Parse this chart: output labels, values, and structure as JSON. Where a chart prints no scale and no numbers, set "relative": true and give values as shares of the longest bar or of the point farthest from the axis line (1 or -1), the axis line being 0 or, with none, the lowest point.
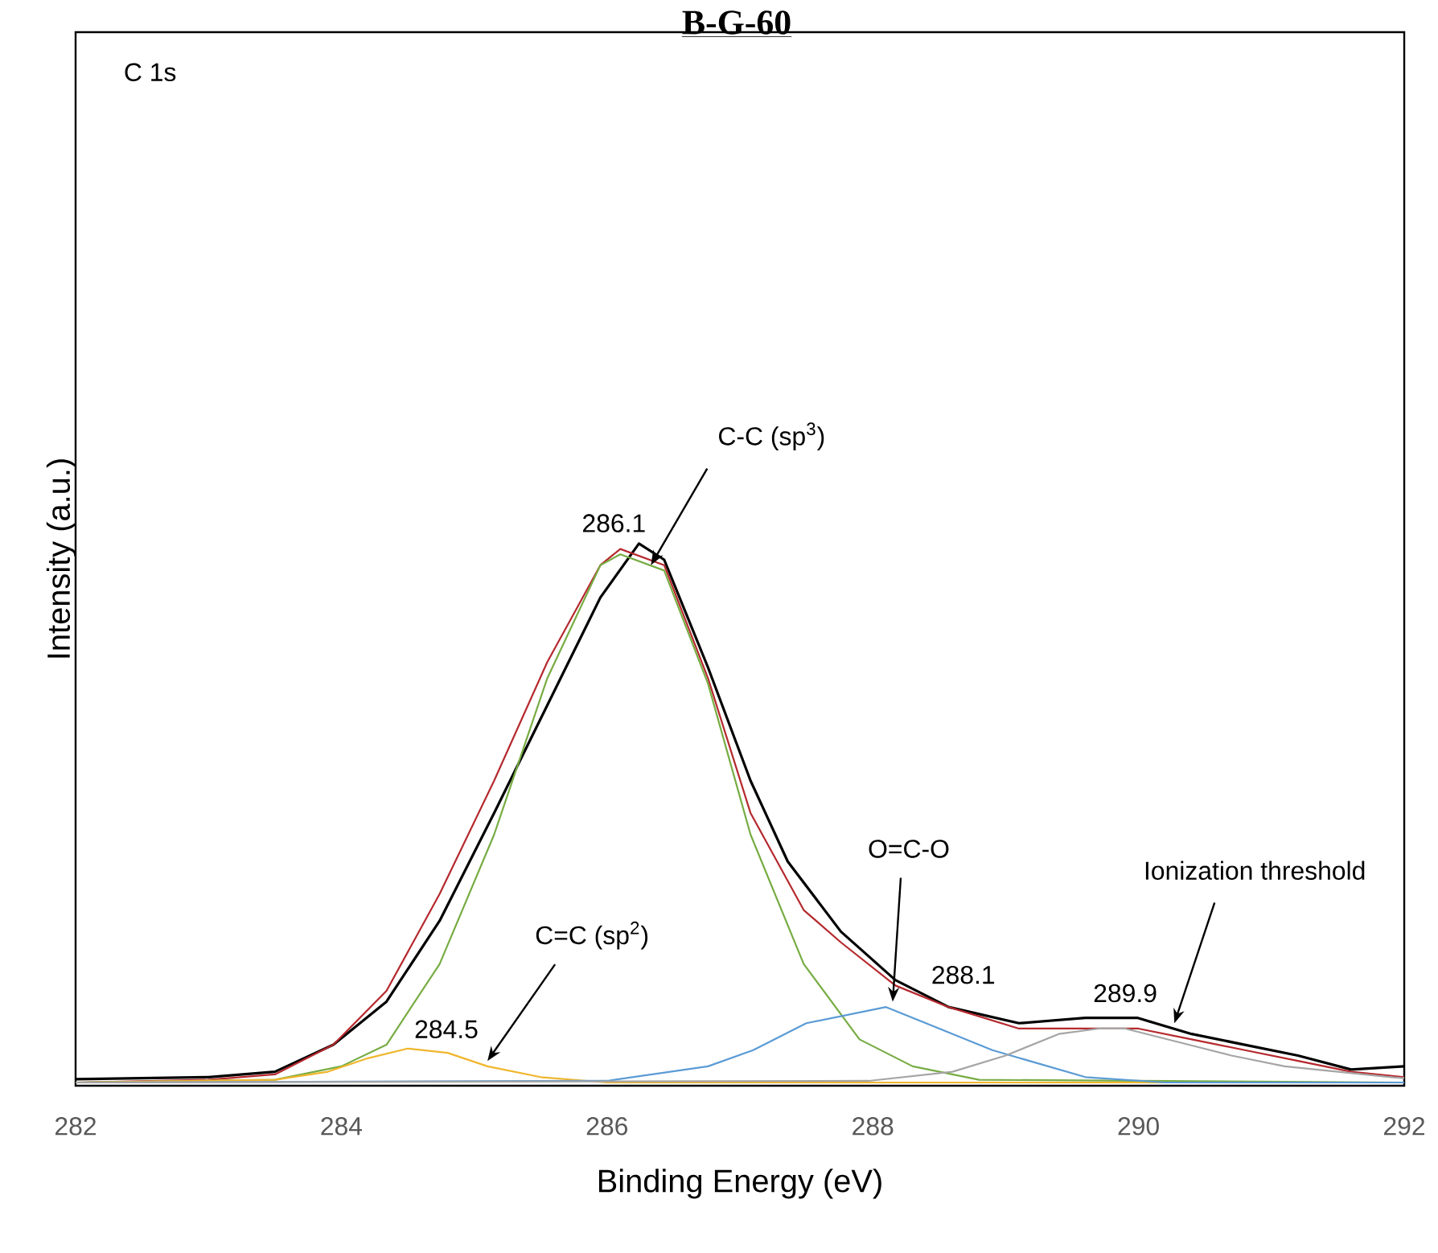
{
  "chart_data": {
    "type": "line",
    "title": "B-G-60",
    "xlabel": "Binding Energy (eV)",
    "ylabel": "Intensity (a.u.)",
    "relative": true,
    "xlim": [
      282,
      292
    ],
    "xticks": [
      282,
      284,
      286,
      288,
      290,
      292
    ],
    "series": [
      {
        "color": "#000000",
        "x": [
          282,
          283,
          283.5,
          283.94,
          284.34,
          284.74,
          285.15,
          285.55,
          285.95,
          286.24,
          286.43,
          286.76,
          287.08,
          287.36,
          287.76,
          288.17,
          288.57,
          289.1,
          289.6,
          289.99,
          290.4,
          290.8,
          291.2,
          291.6,
          292
        ],
        "values": [
          0.006,
          0.01,
          0.02,
          0.07,
          0.15,
          0.3,
          0.5,
          0.7,
          0.9,
          1.0,
          0.97,
          0.77,
          0.56,
          0.41,
          0.28,
          0.19,
          0.14,
          0.11,
          0.12,
          0.12,
          0.09,
          0.07,
          0.05,
          0.024,
          0.03
        ]
      },
      {
        "color": "#b5292e",
        "x": [
          282,
          283,
          283.5,
          283.94,
          284.34,
          284.74,
          285.15,
          285.55,
          285.95,
          286.1,
          286.43,
          286.76,
          287.08,
          287.48,
          287.76,
          288.17,
          288.57,
          289.1,
          289.6,
          290,
          290.4,
          290.8,
          291.2,
          291.6,
          292
        ],
        "values": [
          0.0,
          0.005,
          0.015,
          0.07,
          0.17,
          0.35,
          0.56,
          0.78,
          0.96,
          0.99,
          0.96,
          0.75,
          0.5,
          0.32,
          0.26,
          0.18,
          0.14,
          0.1,
          0.1,
          0.1,
          0.08,
          0.06,
          0.04,
          0.02,
          0.01
        ]
      },
      {
        "color": "#77ac43",
        "x": [
          282,
          283.5,
          284,
          284.34,
          284.74,
          285.15,
          285.55,
          285.95,
          286.1,
          286.43,
          286.76,
          287.08,
          287.48,
          287.9,
          288.3,
          288.8,
          292
        ],
        "values": [
          0,
          0.005,
          0.03,
          0.07,
          0.22,
          0.46,
          0.75,
          0.96,
          0.98,
          0.95,
          0.74,
          0.46,
          0.22,
          0.08,
          0.03,
          0.005,
          0
        ]
      },
      {
        "color": "#f0b62c",
        "x": [
          282,
          283.5,
          283.9,
          284.2,
          284.5,
          284.8,
          285.1,
          285.5,
          286,
          292
        ],
        "values": [
          0,
          0.005,
          0.02,
          0.045,
          0.063,
          0.055,
          0.03,
          0.01,
          0,
          0
        ]
      },
      {
        "color": "#5b9bd5",
        "x": [
          282,
          286,
          286.76,
          287.1,
          287.5,
          288.1,
          288.5,
          288.9,
          289.6,
          290.2,
          292
        ],
        "values": [
          0,
          0.003,
          0.03,
          0.06,
          0.11,
          0.14,
          0.1,
          0.06,
          0.01,
          0,
          0
        ]
      },
      {
        "color": "#a5a5a5",
        "x": [
          282,
          287.97,
          288.6,
          289.0,
          289.4,
          289.7,
          289.9,
          290.3,
          290.7,
          291.1,
          291.9,
          292
        ],
        "values": [
          0,
          0.003,
          0.02,
          0.05,
          0.09,
          0.1,
          0.1,
          0.075,
          0.05,
          0.03,
          0.01,
          0.008
        ]
      }
    ],
    "annotations": [
      "C 1s",
      {
        "text": "C-C (sp$^{3}$)",
        "x": 286.33,
        "y": 0.96
      },
      {
        "text": "286.1",
        "x": 286.1,
        "y": 0.99
      },
      {
        "text": "C=C (sp$^{2}$)",
        "x": 285.1,
        "y": 0.04
      },
      {
        "text": "284.5",
        "x": 284.5,
        "y": 0.063
      },
      {
        "text": "O=C-O",
        "x": 288.15,
        "y": 0.15
      },
      {
        "text": "288.1",
        "x": 288.1,
        "y": 0.14
      },
      {
        "text": "Ionization threshold",
        "x": 290.27,
        "y": 0.11
      },
      {
        "text": "289.9",
        "x": 289.9,
        "y": 0.1
      }
    ]
  }
}
